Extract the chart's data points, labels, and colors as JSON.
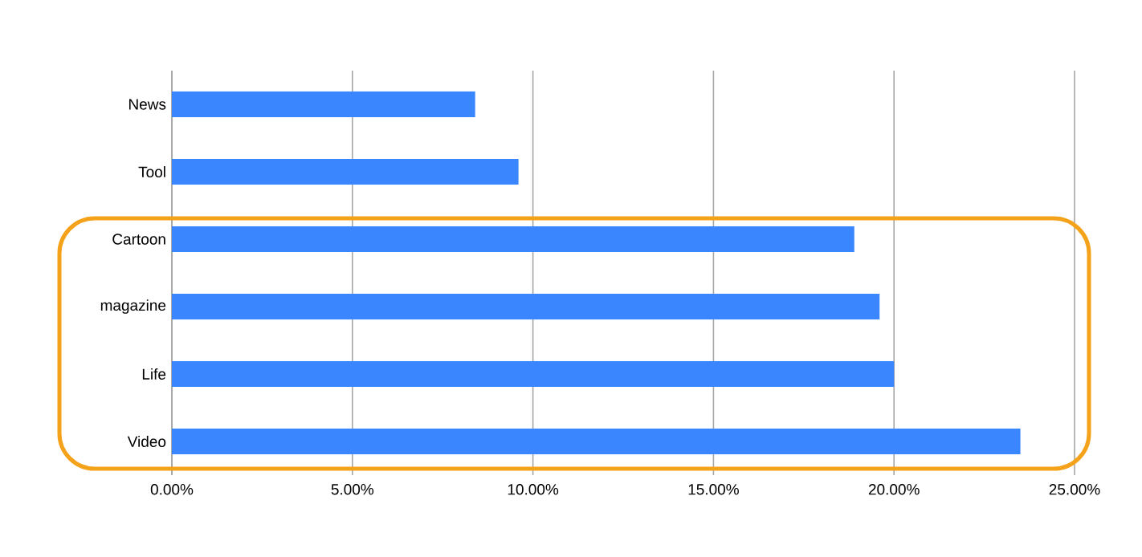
{
  "chart_data": {
    "type": "bar",
    "orientation": "horizontal",
    "categories": [
      "News",
      "Tool",
      "Cartoon",
      "magazine",
      "Life",
      "Video"
    ],
    "values": [
      8.4,
      9.6,
      18.9,
      19.6,
      20.0,
      23.5
    ],
    "color": "#3a86ff",
    "xlim": [
      0,
      25
    ],
    "xticks": [
      {
        "value": 0,
        "label": "0.00%"
      },
      {
        "value": 5,
        "label": "5.00%"
      },
      {
        "value": 10,
        "label": "10.00%"
      },
      {
        "value": 15,
        "label": "15.00%"
      },
      {
        "value": 20,
        "label": "20.00%"
      },
      {
        "value": 25,
        "label": "25.00%"
      }
    ],
    "grid": "x"
  }
}
